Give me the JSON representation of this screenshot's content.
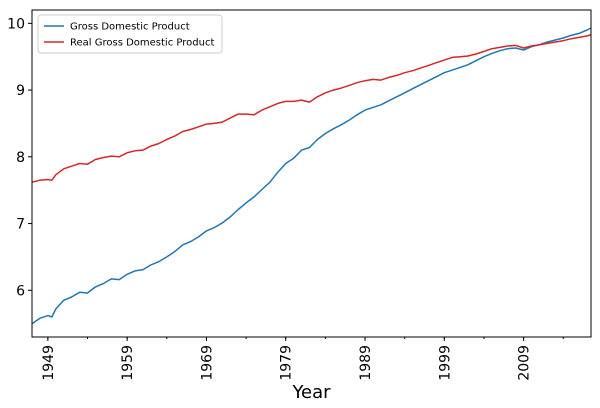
{
  "chart_data": {
    "type": "line",
    "title": "",
    "xlabel": "Year",
    "ylabel": "",
    "xlim": [
      1947,
      2017.5
    ],
    "ylim": [
      5.3,
      10.2
    ],
    "x_ticks": [
      1949,
      1959,
      1969,
      1979,
      1989,
      1999,
      2009
    ],
    "x_tick_labels": [
      "1949",
      "1959",
      "1969",
      "1979",
      "1989",
      "1999",
      "2009"
    ],
    "y_ticks": [
      6,
      7,
      8,
      9,
      10
    ],
    "y_tick_labels": [
      "6",
      "7",
      "8",
      "9",
      "10"
    ],
    "grid": false,
    "legend": "top-left",
    "series": [
      {
        "name": "Gross Domestic Product",
        "color": "#1f77b4",
        "x": [
          1947,
          1948,
          1949,
          1949.5,
          1950,
          1951,
          1952,
          1953,
          1954,
          1955,
          1956,
          1957,
          1958,
          1959,
          1960,
          1961,
          1962,
          1963,
          1964,
          1965,
          1966,
          1967,
          1968,
          1969,
          1970,
          1971,
          1972,
          1973,
          1974,
          1975,
          1976,
          1977,
          1978,
          1979,
          1980,
          1981,
          1982,
          1983,
          1984,
          1985,
          1986,
          1987,
          1988,
          1989,
          1990,
          1991,
          1992,
          1993,
          1994,
          1995,
          1996,
          1997,
          1998,
          1999,
          2000,
          2001,
          2002,
          2003,
          2004,
          2005,
          2006,
          2007,
          2008,
          2009,
          2010,
          2011,
          2012,
          2013,
          2014,
          2015,
          2016,
          2017,
          2017.5
        ],
        "values": [
          5.5,
          5.58,
          5.62,
          5.6,
          5.72,
          5.85,
          5.9,
          5.97,
          5.96,
          6.05,
          6.1,
          6.17,
          6.16,
          6.24,
          6.29,
          6.31,
          6.38,
          6.43,
          6.5,
          6.58,
          6.68,
          6.73,
          6.8,
          6.89,
          6.94,
          7.01,
          7.1,
          7.21,
          7.31,
          7.4,
          7.51,
          7.62,
          7.77,
          7.9,
          7.98,
          8.1,
          8.14,
          8.26,
          8.35,
          8.42,
          8.48,
          8.55,
          8.63,
          8.7,
          8.74,
          8.78,
          8.84,
          8.9,
          8.96,
          9.02,
          9.08,
          9.14,
          9.2,
          9.26,
          9.3,
          9.34,
          9.38,
          9.44,
          9.5,
          9.55,
          9.59,
          9.62,
          9.63,
          9.6,
          9.65,
          9.68,
          9.72,
          9.75,
          9.78,
          9.82,
          9.85,
          9.9,
          9.93
        ]
      },
      {
        "name": "Real Gross Domestic Product",
        "color": "#d62728",
        "x": [
          1947,
          1948,
          1949,
          1949.5,
          1950,
          1951,
          1952,
          1953,
          1954,
          1955,
          1956,
          1957,
          1958,
          1959,
          1960,
          1961,
          1962,
          1963,
          1964,
          1965,
          1966,
          1967,
          1968,
          1969,
          1970,
          1971,
          1972,
          1973,
          1974,
          1975,
          1976,
          1977,
          1978,
          1979,
          1980,
          1981,
          1982,
          1983,
          1984,
          1985,
          1986,
          1987,
          1988,
          1989,
          1990,
          1991,
          1992,
          1993,
          1994,
          1995,
          1996,
          1997,
          1998,
          1999,
          2000,
          2001,
          2002,
          2003,
          2004,
          2005,
          2006,
          2007,
          2008,
          2009,
          2010,
          2011,
          2012,
          2013,
          2014,
          2015,
          2016,
          2017,
          2017.5
        ],
        "values": [
          7.62,
          7.65,
          7.66,
          7.65,
          7.73,
          7.82,
          7.86,
          7.9,
          7.89,
          7.96,
          7.99,
          8.01,
          8.0,
          8.06,
          8.09,
          8.1,
          8.16,
          8.2,
          8.26,
          8.31,
          8.38,
          8.41,
          8.45,
          8.49,
          8.5,
          8.52,
          8.58,
          8.64,
          8.64,
          8.63,
          8.7,
          8.75,
          8.8,
          8.83,
          8.83,
          8.85,
          8.82,
          8.9,
          8.96,
          9.0,
          9.03,
          9.07,
          9.11,
          9.14,
          9.16,
          9.15,
          9.19,
          9.22,
          9.26,
          9.29,
          9.33,
          9.37,
          9.41,
          9.45,
          9.49,
          9.5,
          9.51,
          9.54,
          9.58,
          9.62,
          9.64,
          9.66,
          9.67,
          9.63,
          9.66,
          9.68,
          9.7,
          9.72,
          9.74,
          9.77,
          9.79,
          9.81,
          9.83
        ]
      }
    ]
  }
}
